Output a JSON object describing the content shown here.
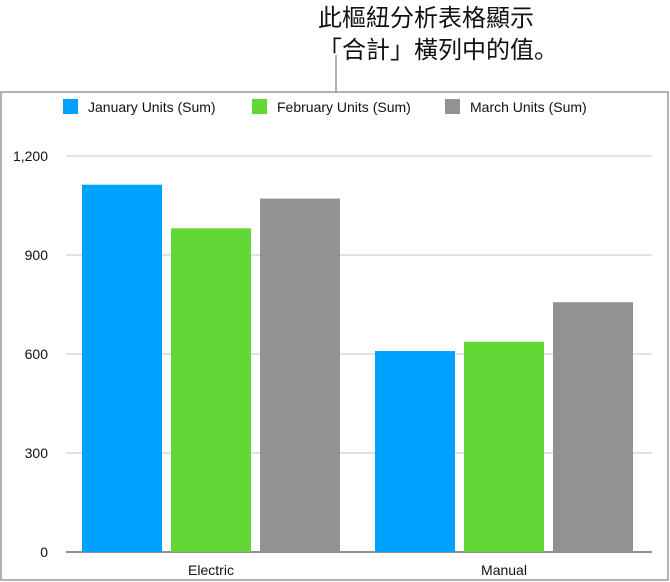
{
  "annotation": {
    "line1": "此樞紐分析表格顯示",
    "line2": "「合計」橫列中的值。"
  },
  "chart_data": {
    "type": "bar",
    "categories": [
      "Electric",
      "Manual"
    ],
    "series": [
      {
        "name": "January Units (Sum)",
        "color": "#00a2ff",
        "values": [
          1113,
          609
        ]
      },
      {
        "name": "February Units (Sum)",
        "color": "#61d836",
        "values": [
          981,
          637
        ]
      },
      {
        "name": "March Units (Sum)",
        "color": "#929292",
        "values": [
          1071,
          757
        ]
      }
    ],
    "yticks": [
      0,
      300,
      600,
      900,
      1200
    ],
    "ytick_labels": [
      "0",
      "300",
      "600",
      "900",
      "1,200"
    ],
    "ylim": [
      0,
      1200
    ],
    "grid": true,
    "legend": "top"
  }
}
